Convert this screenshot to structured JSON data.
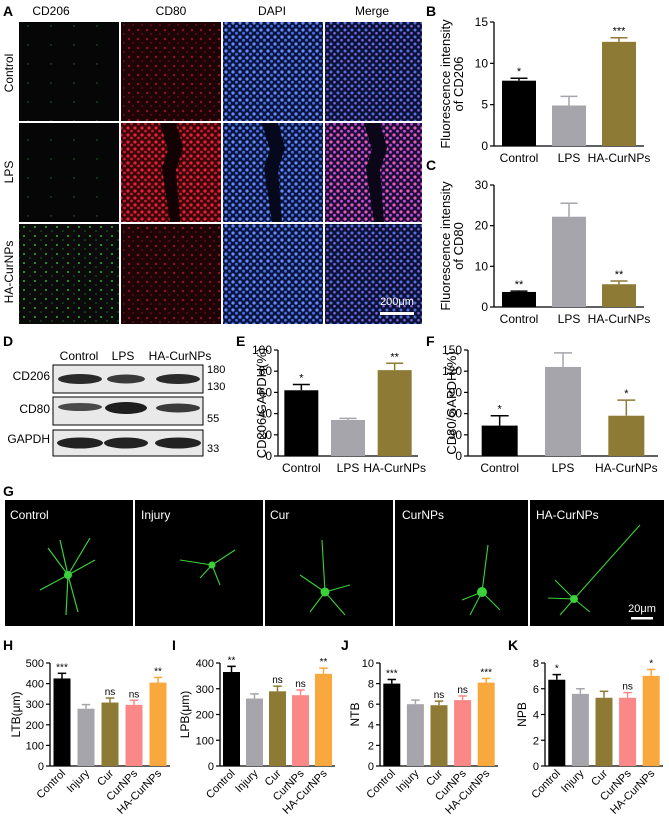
{
  "panel_letters": {
    "A": "A",
    "B": "B",
    "C": "C",
    "D": "D",
    "E": "E",
    "F": "F",
    "G": "G",
    "H": "H",
    "I": "I",
    "J": "J",
    "K": "K"
  },
  "colors": {
    "black": "#000000",
    "gray": "#a5a5ab",
    "olive": "#8c7a35",
    "pink": "#f98887",
    "orange": "#f8a83d",
    "green_cells": "#3ad13a",
    "red_cells": "#e8213a",
    "blue_cells": "#5a7ff0",
    "merge_cells": "#e85ab6"
  },
  "panel_a": {
    "columns": [
      "CD206",
      "CD80",
      "DAPI",
      "Merge"
    ],
    "rows": [
      "Control",
      "LPS",
      "HA-CurNPs"
    ],
    "scale_bar": "200μm",
    "channel_colors": [
      "green",
      "red",
      "blue",
      "merge"
    ]
  },
  "panel_d": {
    "lanes": [
      "Control",
      "LPS",
      "HA-CurNPs"
    ],
    "bands": [
      {
        "name": "CD206",
        "markers": [
          "180",
          "130"
        ]
      },
      {
        "name": "CD80",
        "markers": [
          "55"
        ]
      },
      {
        "name": "GAPDH",
        "markers": [
          "33"
        ]
      }
    ]
  },
  "panel_g": {
    "labels": [
      "Control",
      "Injury",
      "Cur",
      "CurNPs",
      "HA-CurNPs"
    ],
    "scale_bar": "20μm"
  },
  "chart_data": [
    {
      "id": "B",
      "type": "bar",
      "ylabel": [
        "Fluorescence intensity",
        "of CD206"
      ],
      "categories": [
        "Control",
        "LPS",
        "HA-CurNPs"
      ],
      "values": [
        7.9,
        4.9,
        12.6
      ],
      "errors": [
        0.3,
        1.1,
        0.5
      ],
      "sig": [
        "*",
        "",
        "***"
      ],
      "colors": [
        "black",
        "gray",
        "olive"
      ],
      "ylim": [
        0,
        15
      ],
      "yticks": [
        0,
        5,
        10,
        15
      ]
    },
    {
      "id": "C",
      "type": "bar",
      "ylabel": [
        "Fluorescence intensity",
        "of CD80"
      ],
      "categories": [
        "Control",
        "LPS",
        "HA-CurNPs"
      ],
      "values": [
        3.7,
        22.2,
        5.6
      ],
      "errors": [
        0.2,
        3.3,
        0.8
      ],
      "sig": [
        "**",
        "",
        "**"
      ],
      "colors": [
        "black",
        "gray",
        "olive"
      ],
      "ylim": [
        0,
        30
      ],
      "yticks": [
        0,
        10,
        20,
        30
      ]
    },
    {
      "id": "E",
      "type": "bar",
      "ylabel": [
        "CD206/GAPDH(%)"
      ],
      "categories": [
        "Control",
        "LPS",
        "HA-CurNPs"
      ],
      "values": [
        62,
        34,
        81
      ],
      "errors": [
        5.5,
        1.5,
        6.5
      ],
      "sig": [
        "*",
        "",
        "**"
      ],
      "colors": [
        "black",
        "gray",
        "olive"
      ],
      "ylim": [
        0,
        100
      ],
      "yticks": [
        0,
        20,
        40,
        60,
        80,
        100
      ]
    },
    {
      "id": "F",
      "type": "bar",
      "ylabel": [
        "CD80/GAPDH(%)"
      ],
      "categories": [
        "Control",
        "LPS",
        "HA-CurNPs"
      ],
      "values": [
        43,
        126,
        57
      ],
      "errors": [
        14,
        20,
        22
      ],
      "sig": [
        "*",
        "",
        "*"
      ],
      "colors": [
        "black",
        "gray",
        "olive"
      ],
      "ylim": [
        0,
        150
      ],
      "yticks": [
        0,
        30,
        60,
        90,
        120,
        150
      ]
    },
    {
      "id": "H",
      "type": "bar",
      "ylabel": [
        "LTB(μm)"
      ],
      "categories": [
        "Control",
        "Injury",
        "Cur",
        "CurNPs",
        "HA-CurNPs"
      ],
      "values": [
        425,
        278,
        308,
        297,
        405
      ],
      "errors": [
        25,
        20,
        22,
        22,
        25
      ],
      "sig": [
        "***",
        "",
        "ns",
        "ns",
        "**"
      ],
      "colors": [
        "black",
        "gray",
        "olive",
        "pink",
        "orange"
      ],
      "ylim": [
        0,
        500
      ],
      "yticks": [
        0,
        100,
        200,
        300,
        400,
        500
      ]
    },
    {
      "id": "I",
      "type": "bar",
      "ylabel": [
        "LPB(μm)"
      ],
      "categories": [
        "Control",
        "Injury",
        "Cur",
        "CurNPs",
        "HA-CurNPs"
      ],
      "values": [
        365,
        262,
        290,
        275,
        358
      ],
      "errors": [
        22,
        18,
        20,
        20,
        22
      ],
      "sig": [
        "**",
        "",
        "ns",
        "ns",
        "**"
      ],
      "colors": [
        "black",
        "gray",
        "olive",
        "pink",
        "orange"
      ],
      "ylim": [
        0,
        400
      ],
      "yticks": [
        0,
        100,
        200,
        300,
        400
      ]
    },
    {
      "id": "J",
      "type": "bar",
      "ylabel": [
        "NTB"
      ],
      "categories": [
        "Control",
        "Injury",
        "Cur",
        "CurNPs",
        "HA-CurNPs"
      ],
      "values": [
        8.0,
        6.0,
        5.9,
        6.4,
        8.1
      ],
      "errors": [
        0.4,
        0.4,
        0.4,
        0.4,
        0.4
      ],
      "sig": [
        "***",
        "",
        "ns",
        "ns",
        "***"
      ],
      "colors": [
        "black",
        "gray",
        "olive",
        "pink",
        "orange"
      ],
      "ylim": [
        0,
        10
      ],
      "yticks": [
        0,
        2,
        4,
        6,
        8,
        10
      ]
    },
    {
      "id": "K",
      "type": "bar",
      "ylabel": [
        "NPB"
      ],
      "categories": [
        "Control",
        "Injury",
        "Cur",
        "CurNPs",
        "HA-CurNPs"
      ],
      "values": [
        6.7,
        5.6,
        5.3,
        5.3,
        7.0
      ],
      "errors": [
        0.4,
        0.4,
        0.5,
        0.4,
        0.5
      ],
      "sig": [
        "*",
        "",
        "",
        "ns",
        "*"
      ],
      "colors": [
        "black",
        "gray",
        "olive",
        "pink",
        "orange"
      ],
      "ylim": [
        0,
        8
      ],
      "yticks": [
        0,
        2,
        4,
        6,
        8
      ]
    }
  ]
}
